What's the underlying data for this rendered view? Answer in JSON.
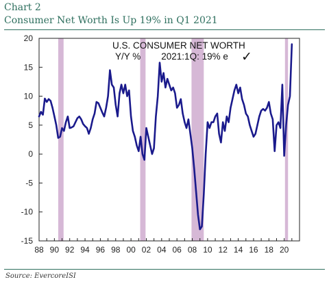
{
  "header": {
    "label": "Chart 2",
    "title": "Consumer Net Worth Is Up 19% in Q1 2021"
  },
  "footer": {
    "source": "Source:  EvercoreISI"
  },
  "colors": {
    "line": "#1a1a8c",
    "recession": "#d6b8d6",
    "header_text": "#2e6f5e"
  },
  "chart_data": {
    "type": "line",
    "annotation_line1": "U.S. CONSUMER NET WORTH",
    "annotation_line2": "Y/Y %        2021:1Q: 19% e",
    "annotation_mark": "✓",
    "xlim": [
      1988,
      2022
    ],
    "ylim": [
      -15,
      20
    ],
    "y_ticks": [
      20,
      15,
      10,
      5,
      0,
      -5,
      -10,
      -15
    ],
    "x_ticks": [
      {
        "label": "88",
        "year": 1988
      },
      {
        "label": "90",
        "year": 1990
      },
      {
        "label": "92",
        "year": 1992
      },
      {
        "label": "94",
        "year": 1994
      },
      {
        "label": "96",
        "year": 1996
      },
      {
        "label": "98",
        "year": 1998
      },
      {
        "label": "00",
        "year": 2000
      },
      {
        "label": "02",
        "year": 2002
      },
      {
        "label": "04",
        "year": 2004
      },
      {
        "label": "06",
        "year": 2006
      },
      {
        "label": "08",
        "year": 2008
      },
      {
        "label": "10",
        "year": 2010
      },
      {
        "label": "12",
        "year": 2012
      },
      {
        "label": "14",
        "year": 2014
      },
      {
        "label": "16",
        "year": 2016
      },
      {
        "label": "18",
        "year": 2018
      },
      {
        "label": "20",
        "year": 2020
      }
    ],
    "recessions": [
      [
        1990.5,
        1991.2
      ],
      [
        2001.2,
        2001.9
      ],
      [
        2007.9,
        2009.5
      ],
      [
        2020.1,
        2020.5
      ]
    ],
    "points": [
      [
        1988.0,
        6.5
      ],
      [
        1988.25,
        7.3
      ],
      [
        1988.5,
        6.8
      ],
      [
        1988.75,
        9.6
      ],
      [
        1989.0,
        9.0
      ],
      [
        1989.25,
        9.5
      ],
      [
        1989.5,
        9.2
      ],
      [
        1989.75,
        8.0
      ],
      [
        1990.0,
        6.5
      ],
      [
        1990.25,
        5.0
      ],
      [
        1990.5,
        2.8
      ],
      [
        1990.75,
        3.0
      ],
      [
        1991.0,
        4.5
      ],
      [
        1991.25,
        4.0
      ],
      [
        1991.5,
        5.5
      ],
      [
        1991.75,
        6.5
      ],
      [
        1992.0,
        4.5
      ],
      [
        1992.25,
        4.6
      ],
      [
        1992.5,
        4.8
      ],
      [
        1992.75,
        5.5
      ],
      [
        1993.0,
        6.2
      ],
      [
        1993.25,
        6.5
      ],
      [
        1993.5,
        6.0
      ],
      [
        1993.75,
        5.2
      ],
      [
        1994.0,
        4.8
      ],
      [
        1994.25,
        4.5
      ],
      [
        1994.5,
        3.5
      ],
      [
        1994.75,
        4.5
      ],
      [
        1995.0,
        6.0
      ],
      [
        1995.25,
        7.0
      ],
      [
        1995.5,
        9.0
      ],
      [
        1995.75,
        8.8
      ],
      [
        1996.0,
        8.0
      ],
      [
        1996.25,
        7.2
      ],
      [
        1996.5,
        6.5
      ],
      [
        1996.75,
        8.0
      ],
      [
        1997.0,
        10.0
      ],
      [
        1997.25,
        14.5
      ],
      [
        1997.5,
        12.0
      ],
      [
        1997.75,
        11.5
      ],
      [
        1998.0,
        8.5
      ],
      [
        1998.25,
        6.5
      ],
      [
        1998.5,
        10.5
      ],
      [
        1998.75,
        12.0
      ],
      [
        1999.0,
        10.5
      ],
      [
        1999.25,
        12.0
      ],
      [
        1999.5,
        10.0
      ],
      [
        1999.75,
        11.0
      ],
      [
        2000.0,
        6.5
      ],
      [
        2000.25,
        4.0
      ],
      [
        2000.5,
        3.0
      ],
      [
        2000.75,
        1.5
      ],
      [
        2001.0,
        0.5
      ],
      [
        2001.25,
        3.0
      ],
      [
        2001.5,
        0.0
      ],
      [
        2001.75,
        -1.0
      ],
      [
        2002.0,
        4.5
      ],
      [
        2002.25,
        3.0
      ],
      [
        2002.5,
        1.5
      ],
      [
        2002.75,
        0.0
      ],
      [
        2003.0,
        1.0
      ],
      [
        2003.25,
        6.5
      ],
      [
        2003.5,
        10.0
      ],
      [
        2003.75,
        15.8
      ],
      [
        2004.0,
        12.5
      ],
      [
        2004.25,
        14.0
      ],
      [
        2004.5,
        11.5
      ],
      [
        2004.75,
        13.0
      ],
      [
        2005.0,
        12.0
      ],
      [
        2005.25,
        11.0
      ],
      [
        2005.5,
        11.5
      ],
      [
        2005.75,
        10.5
      ],
      [
        2006.0,
        8.0
      ],
      [
        2006.25,
        8.5
      ],
      [
        2006.5,
        9.5
      ],
      [
        2006.75,
        7.0
      ],
      [
        2007.0,
        5.5
      ],
      [
        2007.25,
        4.5
      ],
      [
        2007.5,
        6.0
      ],
      [
        2007.75,
        3.5
      ],
      [
        2008.0,
        1.0
      ],
      [
        2008.25,
        -2.5
      ],
      [
        2008.5,
        -6.5
      ],
      [
        2008.75,
        -10.5
      ],
      [
        2009.0,
        -13.0
      ],
      [
        2009.25,
        -12.5
      ],
      [
        2009.5,
        -7.0
      ],
      [
        2009.75,
        0.0
      ],
      [
        2010.0,
        5.5
      ],
      [
        2010.25,
        4.5
      ],
      [
        2010.5,
        5.5
      ],
      [
        2010.75,
        5.5
      ],
      [
        2011.0,
        6.5
      ],
      [
        2011.25,
        7.0
      ],
      [
        2011.5,
        3.5
      ],
      [
        2011.75,
        2.0
      ],
      [
        2012.0,
        5.5
      ],
      [
        2012.25,
        4.0
      ],
      [
        2012.5,
        6.5
      ],
      [
        2012.75,
        5.5
      ],
      [
        2013.0,
        8.0
      ],
      [
        2013.25,
        9.5
      ],
      [
        2013.5,
        11.0
      ],
      [
        2013.75,
        12.0
      ],
      [
        2014.0,
        10.5
      ],
      [
        2014.25,
        11.5
      ],
      [
        2014.5,
        9.5
      ],
      [
        2014.75,
        8.5
      ],
      [
        2015.0,
        7.0
      ],
      [
        2015.25,
        6.5
      ],
      [
        2015.5,
        5.0
      ],
      [
        2015.75,
        4.0
      ],
      [
        2016.0,
        3.0
      ],
      [
        2016.25,
        3.5
      ],
      [
        2016.5,
        5.0
      ],
      [
        2016.75,
        6.5
      ],
      [
        2017.0,
        7.5
      ],
      [
        2017.25,
        7.8
      ],
      [
        2017.5,
        7.5
      ],
      [
        2017.75,
        8.0
      ],
      [
        2018.0,
        9.0
      ],
      [
        2018.25,
        7.0
      ],
      [
        2018.5,
        6.0
      ],
      [
        2018.75,
        0.5
      ],
      [
        2019.0,
        5.0
      ],
      [
        2019.25,
        5.5
      ],
      [
        2019.5,
        4.5
      ],
      [
        2019.75,
        12.0
      ],
      [
        2020.0,
        -0.3
      ],
      [
        2020.25,
        5.0
      ],
      [
        2020.5,
        8.5
      ],
      [
        2020.75,
        10.0
      ],
      [
        2021.0,
        19.0
      ]
    ]
  }
}
